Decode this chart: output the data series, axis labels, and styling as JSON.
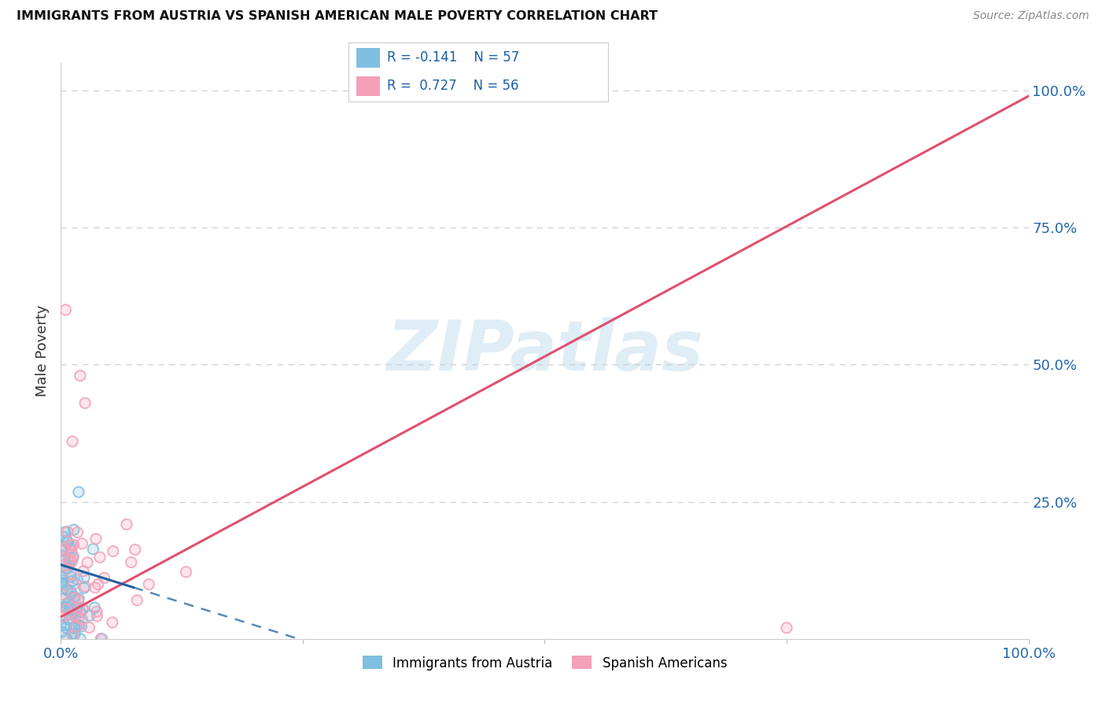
{
  "title": "IMMIGRANTS FROM AUSTRIA VS SPANISH AMERICAN MALE POVERTY CORRELATION CHART",
  "source": "Source: ZipAtlas.com",
  "ylabel": "Male Poverty",
  "watermark": "ZIPatlas",
  "blue_color": "#7fbfdf",
  "pink_color": "#f4a0b8",
  "blue_line_color": "#2060a0",
  "pink_line_color": "#e05070",
  "background_color": "#ffffff",
  "grid_color": "#d0d0d0",
  "xlim": [
    0.0,
    1.0
  ],
  "ylim": [
    0.0,
    1.05
  ]
}
